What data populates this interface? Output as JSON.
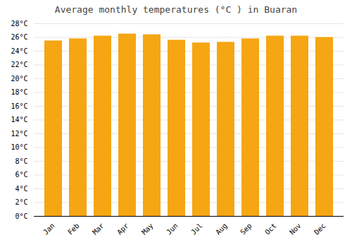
{
  "chart_data": {
    "type": "bar",
    "title": "Average monthly temperatures (°C ) in Buaran",
    "categories": [
      "Jan",
      "Feb",
      "Mar",
      "Apr",
      "May",
      "Jun",
      "Jul",
      "Aug",
      "Sep",
      "Oct",
      "Nov",
      "Dec"
    ],
    "values": [
      25.5,
      25.8,
      26.2,
      26.5,
      26.4,
      25.6,
      25.2,
      25.3,
      25.8,
      26.2,
      26.2,
      26.0
    ],
    "color": "#F5A612",
    "ylim": [
      0,
      28
    ],
    "yticks": [
      {
        "value": 0,
        "label": "0°C"
      },
      {
        "value": 2,
        "label": "2°C"
      },
      {
        "value": 4,
        "label": "4°C"
      },
      {
        "value": 6,
        "label": "6°C"
      },
      {
        "value": 8,
        "label": "8°C"
      },
      {
        "value": 10,
        "label": "10°C"
      },
      {
        "value": 12,
        "label": "12°C"
      },
      {
        "value": 14,
        "label": "14°C"
      },
      {
        "value": 16,
        "label": "16°C"
      },
      {
        "value": 18,
        "label": "18°C"
      },
      {
        "value": 20,
        "label": "20°C"
      },
      {
        "value": 22,
        "label": "22°C"
      },
      {
        "value": 24,
        "label": "24°C"
      },
      {
        "value": 26,
        "label": "26°C"
      },
      {
        "value": 28,
        "label": "28°C"
      }
    ],
    "grid": true
  }
}
